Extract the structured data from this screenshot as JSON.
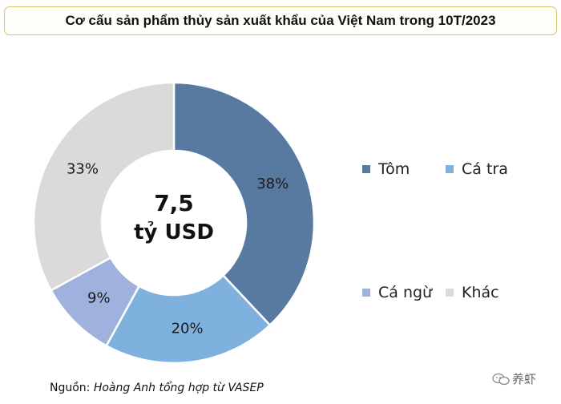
{
  "title": "Cơ cấu sản phẩm thủy sản xuất khẩu của Việt Nam trong 10T/2023",
  "chart_data": {
    "type": "pie",
    "variant": "donut",
    "center_label": {
      "value": "7,5",
      "unit": "tỷ USD"
    },
    "slices": [
      {
        "name": "Tôm",
        "value": 38,
        "label": "38%",
        "color": "#587aa0"
      },
      {
        "name": "Cá tra",
        "value": 20,
        "label": "20%",
        "color": "#7fb1df"
      },
      {
        "name": "Cá ngừ",
        "value": 9,
        "label": "9%",
        "color": "#9fb2de"
      },
      {
        "name": "Khác",
        "value": 33,
        "label": "33%",
        "color": "#dadada"
      }
    ],
    "legend_placement": "right"
  },
  "source": {
    "prefix": "Nguồn:",
    "author": "Hoàng Anh tổng hợp từ  VASEP"
  },
  "watermark": {
    "text": "养虾",
    "icon": "wechat-icon"
  }
}
